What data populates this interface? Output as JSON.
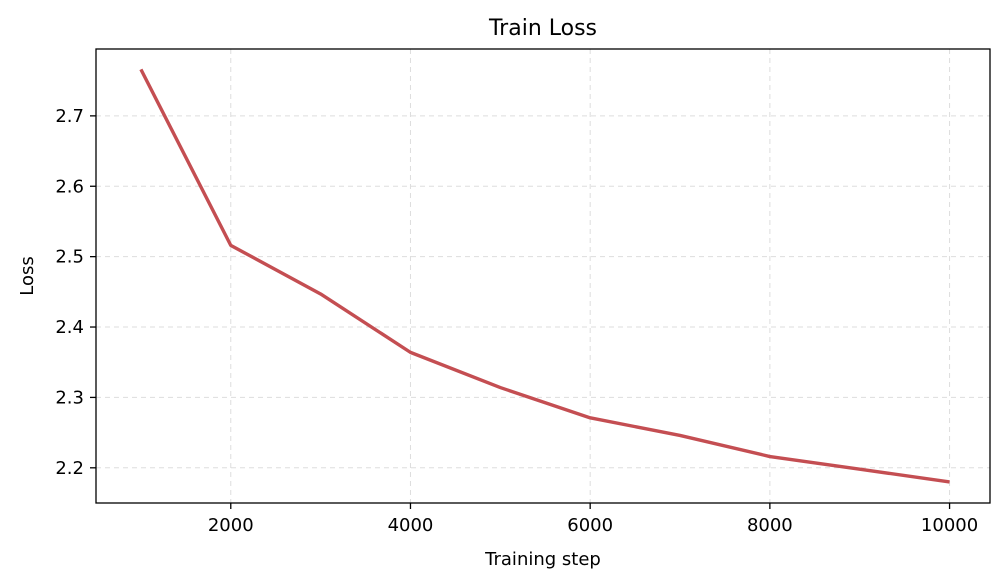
{
  "chart_data": {
    "type": "line",
    "title": "Train Loss",
    "xlabel": "Training step",
    "ylabel": "Loss",
    "xlim": [
      500,
      10450
    ],
    "ylim": [
      2.15,
      2.795
    ],
    "xticks": [
      2000,
      4000,
      6000,
      8000,
      10000
    ],
    "xtick_labels": [
      "2000",
      "4000",
      "6000",
      "8000",
      "10000"
    ],
    "yticks": [
      2.2,
      2.3,
      2.4,
      2.5,
      2.6,
      2.7
    ],
    "ytick_labels": [
      "2.2",
      "2.3",
      "2.4",
      "2.5",
      "2.6",
      "2.7"
    ],
    "grid": true,
    "series": [
      {
        "color": "#c44e52",
        "x": [
          1000,
          2000,
          3000,
          4000,
          5000,
          6000,
          7000,
          8000,
          9000,
          10000
        ],
        "y": [
          2.766,
          2.516,
          2.447,
          2.364,
          2.314,
          2.271,
          2.246,
          2.216,
          2.198,
          2.18
        ]
      }
    ]
  }
}
